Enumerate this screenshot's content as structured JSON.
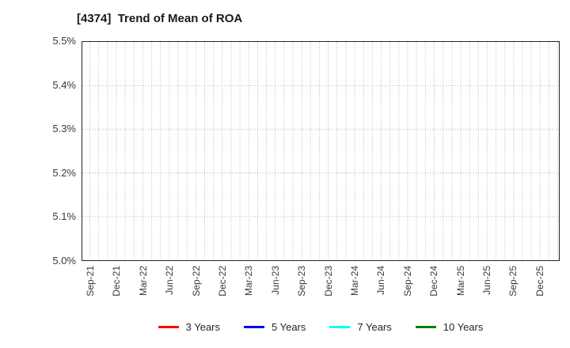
{
  "chart_data": {
    "type": "line",
    "title": "[4374]  Trend of Mean of ROA",
    "xlabel": "",
    "ylabel": "",
    "ylim": [
      5.0,
      5.5
    ],
    "y_tick_labels": [
      "5.0%",
      "5.1%",
      "5.2%",
      "5.3%",
      "5.4%",
      "5.5%"
    ],
    "x_tick_labels": [
      "Sep-21",
      "Dec-21",
      "Mar-22",
      "Jun-22",
      "Sep-22",
      "Dec-22",
      "Mar-23",
      "Jun-23",
      "Sep-23",
      "Dec-23",
      "Mar-24",
      "Jun-24",
      "Sep-24",
      "Dec-24",
      "Mar-25",
      "Jun-25",
      "Sep-25",
      "Dec-25"
    ],
    "grid": "dotted, vertical lines monthly, horizontal lines every 0.1%",
    "legend_position": "bottom",
    "plot_is_empty": true,
    "series": [
      {
        "name": "3 Years",
        "color": "#ff0000",
        "values": []
      },
      {
        "name": "5 Years",
        "color": "#0000ff",
        "values": []
      },
      {
        "name": "7 Years",
        "color": "#00ffff",
        "values": []
      },
      {
        "name": "10 Years",
        "color": "#008000",
        "values": []
      }
    ],
    "colors": {
      "axis_border": "#262626",
      "grid_line": "#b0b0b0",
      "tick_text": "#3a3a3a",
      "background": "#ffffff"
    }
  }
}
